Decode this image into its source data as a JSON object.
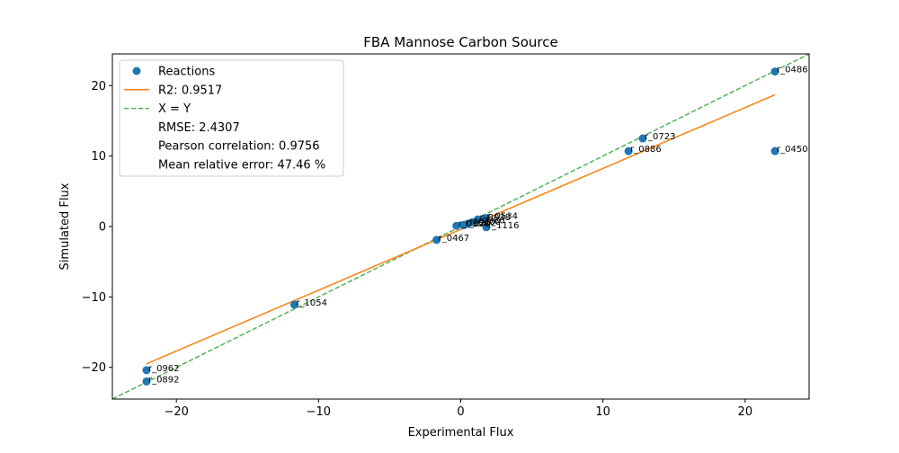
{
  "chart_data": {
    "type": "scatter",
    "title": "FBA Mannose Carbon Source",
    "xlabel": "Experimental Flux",
    "ylabel": "Simulated Flux",
    "xlim": [
      -24.5,
      24.5
    ],
    "ylim": [
      -24.5,
      24.5
    ],
    "xticks": [
      -20,
      -10,
      0,
      10,
      20
    ],
    "yticks": [
      -20,
      -10,
      0,
      10,
      20
    ],
    "xtick_labels": [
      "−20",
      "−10",
      "0",
      "10",
      "20"
    ],
    "ytick_labels": [
      "−20",
      "−10",
      "0",
      "10",
      "20"
    ],
    "grid": false,
    "legend_position": "top-left",
    "colors": {
      "points": "#1f77b4",
      "fit": "#ff7f0e",
      "identity": "#2ca02c"
    },
    "legend": [
      {
        "label": "Reactions",
        "marker": "circle"
      },
      {
        "label": "R2: 0.9517",
        "marker": "solid-line"
      },
      {
        "label": "X = Y",
        "marker": "dashed-line"
      },
      {
        "label": "RMSE: 2.4307",
        "marker": "none"
      },
      {
        "label": "Pearson correlation: 0.9756",
        "marker": "none"
      },
      {
        "label": "Mean relative error: 47.46 %",
        "marker": "none"
      }
    ],
    "series": [
      {
        "name": "Reactions",
        "points": [
          {
            "x": 22.1,
            "y": 22.0,
            "label": "r_0486"
          },
          {
            "x": 22.1,
            "y": 10.7,
            "label": "r_0450"
          },
          {
            "x": 12.8,
            "y": 12.5,
            "label": "r_0723"
          },
          {
            "x": 11.8,
            "y": 10.7,
            "label": "r_0886"
          },
          {
            "x": -1.7,
            "y": -1.9,
            "label": "r_0467"
          },
          {
            "x": 1.8,
            "y": -0.1,
            "label": "r_1116"
          },
          {
            "x": 1.7,
            "y": 1.2,
            "label": "r_0534"
          },
          {
            "x": 1.2,
            "y": 1.0,
            "label": "r_0038"
          },
          {
            "x": 0.8,
            "y": 0.6,
            "label": "r_0080"
          },
          {
            "x": 0.5,
            "y": 0.4,
            "label": "r_0300"
          },
          {
            "x": 0.2,
            "y": 0.2,
            "label": "r_0302"
          },
          {
            "x": -0.3,
            "y": 0.1,
            "label": "r_0958"
          },
          {
            "x": -11.7,
            "y": -11.1,
            "label": "r_1054"
          },
          {
            "x": -22.1,
            "y": -20.4,
            "label": "r_0962"
          },
          {
            "x": -22.1,
            "y": -22.0,
            "label": "r_0892"
          }
        ]
      },
      {
        "name": "R2: 0.9517",
        "kind": "fit",
        "x": [
          -22.1,
          22.1
        ],
        "y": [
          -19.5,
          18.7
        ]
      },
      {
        "name": "X = Y",
        "kind": "identity",
        "x": [
          -24.5,
          24.5
        ],
        "y": [
          -24.5,
          24.5
        ]
      }
    ]
  }
}
